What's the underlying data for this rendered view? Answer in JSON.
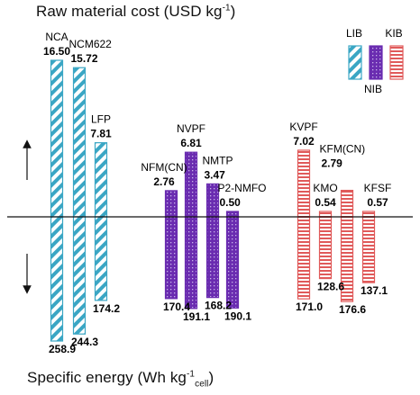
{
  "titles": {
    "top": {
      "text": "Raw material cost (USD kg",
      "sup": "-1",
      "close": ")"
    },
    "bottom": {
      "text": "Specific energy (Wh kg",
      "sup": "-1",
      "sub": "cell",
      "close": ")"
    }
  },
  "chart_data": {
    "type": "bar",
    "description_axis": "bars above baseline = raw material cost (USD/kg); bars below baseline = specific energy (Wh/kg_cell)",
    "upper_ylim": [
      0,
      16.5
    ],
    "lower_ylim": [
      0,
      258.9
    ],
    "groups": [
      {
        "name": "LIB",
        "color": "#3aa6c4",
        "pattern": "diagonal-hatch",
        "items": [
          {
            "label": "NCA",
            "cost": 16.5,
            "cost_text": "16.50",
            "energy": 258.9,
            "energy_text": "258.9"
          },
          {
            "label": "NCM622",
            "cost": 15.72,
            "cost_text": "15.72",
            "energy": 244.3,
            "energy_text": "244.3"
          },
          {
            "label": "LFP",
            "cost": 7.81,
            "cost_text": "7.81",
            "energy": 174.2,
            "energy_text": "174.2"
          }
        ]
      },
      {
        "name": "NIB",
        "color": "#6a2cb0",
        "pattern": "dots",
        "items": [
          {
            "label": "NFM(CN)",
            "cost": 2.76,
            "cost_text": "2.76",
            "energy": 170.4,
            "energy_text": "170.4"
          },
          {
            "label": "NVPF",
            "cost": 6.81,
            "cost_text": "6.81",
            "energy": 191.1,
            "energy_text": "191.1"
          },
          {
            "label": "NMTP",
            "cost": 3.47,
            "cost_text": "3.47",
            "energy": 168.2,
            "energy_text": "168.2"
          },
          {
            "label": "P2-NMFO",
            "cost": 0.5,
            "cost_text": "0.50",
            "energy": 190.1,
            "energy_text": "190.1"
          }
        ]
      },
      {
        "name": "KIB",
        "color": "#e05a5a",
        "pattern": "horizontal-lines",
        "items": [
          {
            "label": "KVPF",
            "cost": 7.02,
            "cost_text": "7.02",
            "energy": 171.0,
            "energy_text": "171.0"
          },
          {
            "label": "KMO",
            "cost": 0.54,
            "cost_text": "0.54",
            "energy": 128.6,
            "energy_text": "128.6"
          },
          {
            "label": "KFM(CN)",
            "cost": 2.79,
            "cost_text": "2.79",
            "energy": 176.6,
            "energy_text": "176.6"
          },
          {
            "label": "KFSF",
            "cost": 0.57,
            "cost_text": "0.57",
            "energy": 137.1,
            "energy_text": "137.1"
          }
        ]
      }
    ],
    "legend": {
      "placement": "top-right",
      "entries": [
        "LIB",
        "NIB",
        "KIB"
      ]
    }
  }
}
